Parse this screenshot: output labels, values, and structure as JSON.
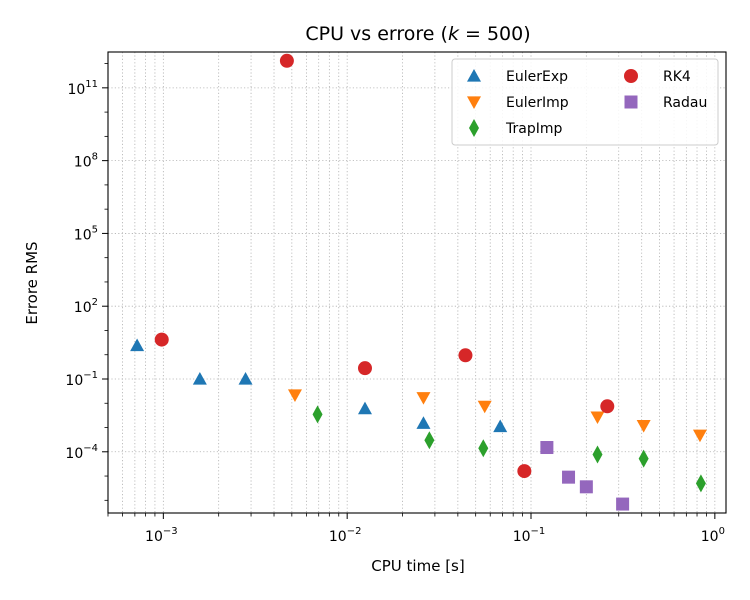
{
  "chart_data": {
    "type": "scatter",
    "title": "CPU vs errore  (k = 500)",
    "title_parts": {
      "prefix": "CPU vs errore  (",
      "var": "k",
      "eq": " = 500",
      "suffix": ")"
    },
    "xlabel": "CPU time [s]",
    "ylabel": "Errore RMS",
    "xscale": "log",
    "yscale": "log",
    "xlim": [
      0.0005,
      1.15
    ],
    "ylim": [
      3e-07,
      3000000000000.0
    ],
    "grid": "on (dotted, major and minor)",
    "legend_position": "top-right",
    "x_tick_labels": [
      {
        "value": 0.001,
        "base": "10",
        "exp": "−3"
      },
      {
        "value": 0.01,
        "base": "10",
        "exp": "−2"
      },
      {
        "value": 0.1,
        "base": "10",
        "exp": "−1"
      },
      {
        "value": 1,
        "base": "10",
        "exp": "0"
      }
    ],
    "y_tick_labels": [
      {
        "value": 0.0001,
        "base": "10",
        "exp": "−4"
      },
      {
        "value": 0.1,
        "base": "10",
        "exp": "−1"
      },
      {
        "value": 100,
        "base": "10",
        "exp": "2"
      },
      {
        "value": 100000.0,
        "base": "10",
        "exp": "5"
      },
      {
        "value": 100000000.0,
        "base": "10",
        "exp": "8"
      },
      {
        "value": 100000000000.0,
        "base": "10",
        "exp": "11"
      }
    ],
    "series": [
      {
        "name": "EulerExp",
        "marker": "triangle-up",
        "color": "#1f77b4",
        "points": [
          [
            0.00072,
            2.4
          ],
          [
            0.00158,
            0.1
          ],
          [
            0.0028,
            0.1
          ],
          [
            0.0125,
            0.006
          ],
          [
            0.026,
            0.0015
          ],
          [
            0.068,
            0.0011
          ]
        ]
      },
      {
        "name": "EulerImp",
        "marker": "triangle-down",
        "color": "#ff7f0e",
        "points": [
          [
            0.0052,
            0.022
          ],
          [
            0.026,
            0.017
          ],
          [
            0.056,
            0.0075
          ],
          [
            0.23,
            0.0027
          ],
          [
            0.41,
            0.0012
          ],
          [
            0.83,
            0.00048
          ]
        ]
      },
      {
        "name": "TrapImp",
        "marker": "thin-diamond",
        "color": "#2ca02c",
        "points": [
          [
            0.0069,
            0.0035
          ],
          [
            0.028,
            0.0003
          ],
          [
            0.055,
            0.00014
          ],
          [
            0.23,
            7.7e-05
          ],
          [
            0.41,
            5.2e-05
          ],
          [
            0.84,
            5e-06
          ]
        ]
      },
      {
        "name": "RK4",
        "marker": "circle",
        "color": "#d62728",
        "points": [
          [
            0.00098,
            4.2
          ],
          [
            0.0047,
            1300000000000.0
          ],
          [
            0.0125,
            0.28
          ],
          [
            0.044,
            0.95
          ],
          [
            0.092,
            1.6e-05
          ],
          [
            0.26,
            0.0075
          ]
        ]
      },
      {
        "name": "Radau",
        "marker": "square",
        "color": "#9467bd",
        "points": [
          [
            0.122,
            0.00015
          ],
          [
            0.16,
            9e-06
          ],
          [
            0.2,
            3.6e-06
          ],
          [
            0.315,
            7e-07
          ]
        ]
      }
    ]
  }
}
